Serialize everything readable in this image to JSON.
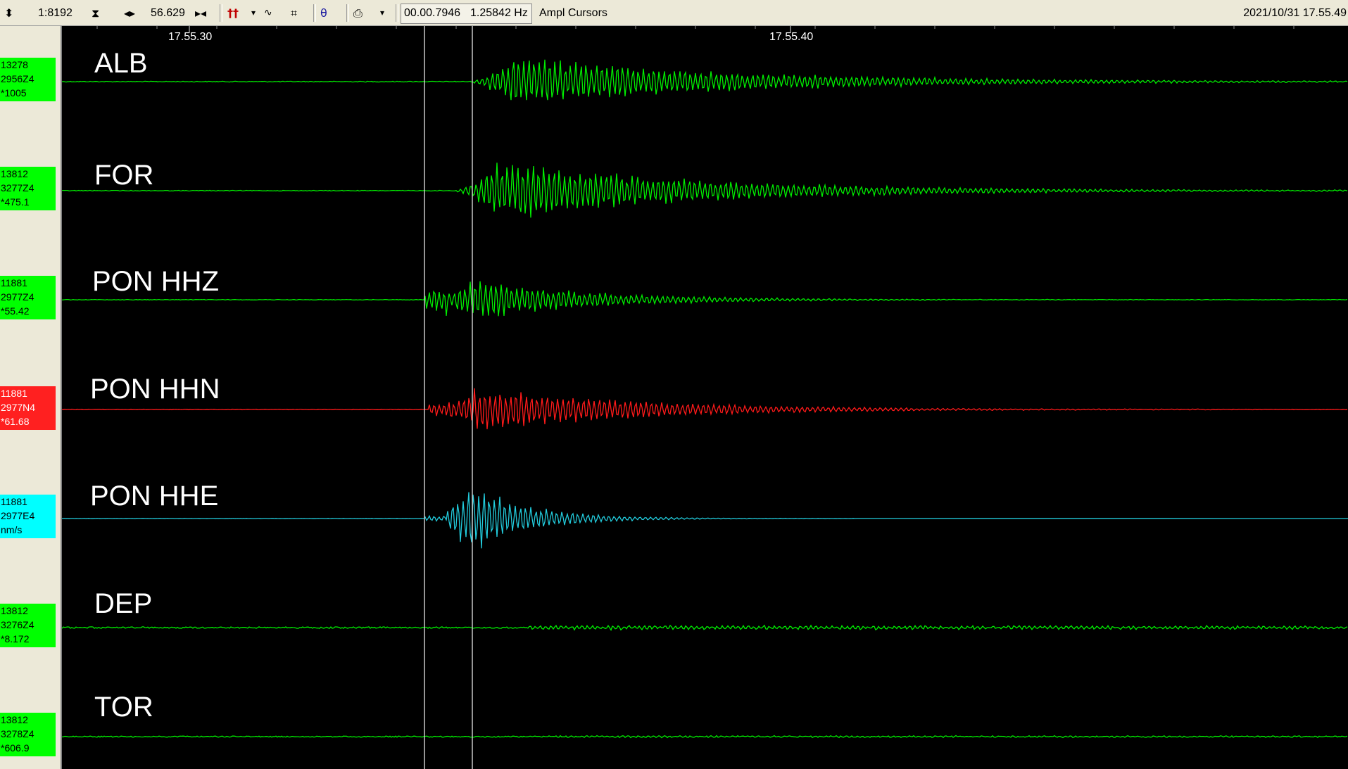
{
  "toolbar": {
    "zoom_label": "1:8192",
    "span_label": "56.629",
    "cursor_time": "00.00.7946",
    "cursor_freq": "1.25842 Hz",
    "mode_label": "Ampl Cursors",
    "datetime": "2021/10/31 17.55.49"
  },
  "time_axis": {
    "ticks": [
      {
        "label": "17.55.30"
      },
      {
        "label": "17.55.40"
      }
    ]
  },
  "channels": [
    {
      "station": "ALB",
      "line1": "13278",
      "line2": "2956Z4",
      "line3": "*1005",
      "color": "#00ee00",
      "badge_color": "#00ff00",
      "badge_text": "#000000"
    },
    {
      "station": "FOR",
      "line1": "13812",
      "line2": "3277Z4",
      "line3": "*475.1",
      "color": "#00ee00",
      "badge_color": "#00ff00",
      "badge_text": "#000000"
    },
    {
      "station": "PON HHZ",
      "line1": "11881",
      "line2": "2977Z4",
      "line3": "*55.42",
      "color": "#00ee00",
      "badge_color": "#00ff00",
      "badge_text": "#000000"
    },
    {
      "station": "PON HHN",
      "line1": "11881",
      "line2": "2977N4",
      "line3": "*61.68",
      "color": "#ff1a1a",
      "badge_color": "#ff2020",
      "badge_text": "#ffffff"
    },
    {
      "station": "PON HHE",
      "line1": "11881",
      "line2": "2977E4",
      "line3": "nm/s",
      "color": "#22ccdd",
      "badge_color": "#00ffff",
      "badge_text": "#000000"
    },
    {
      "station": "DEP",
      "line1": "13812",
      "line2": "3276Z4",
      "line3": "*8.172",
      "color": "#00ee00",
      "badge_color": "#00ff00",
      "badge_text": "#000000"
    },
    {
      "station": "TOR",
      "line1": "13812",
      "line2": "3278Z4",
      "line3": "*606.9",
      "color": "#00ee00",
      "badge_color": "#00ff00",
      "badge_text": "#000000"
    }
  ],
  "colors": {
    "toolbar_bg": "#ece9d8",
    "plot_bg": "#000000",
    "cursor_line": "#c8c8c8"
  },
  "icons": [
    "updown-arrows-icon",
    "hourglass-icon",
    "left-right-arrows-icon",
    "collapse-arrows-icon",
    "pick-tool-icon",
    "waveform-icon",
    "frame-icon",
    "filter-icon",
    "printer-icon"
  ]
}
